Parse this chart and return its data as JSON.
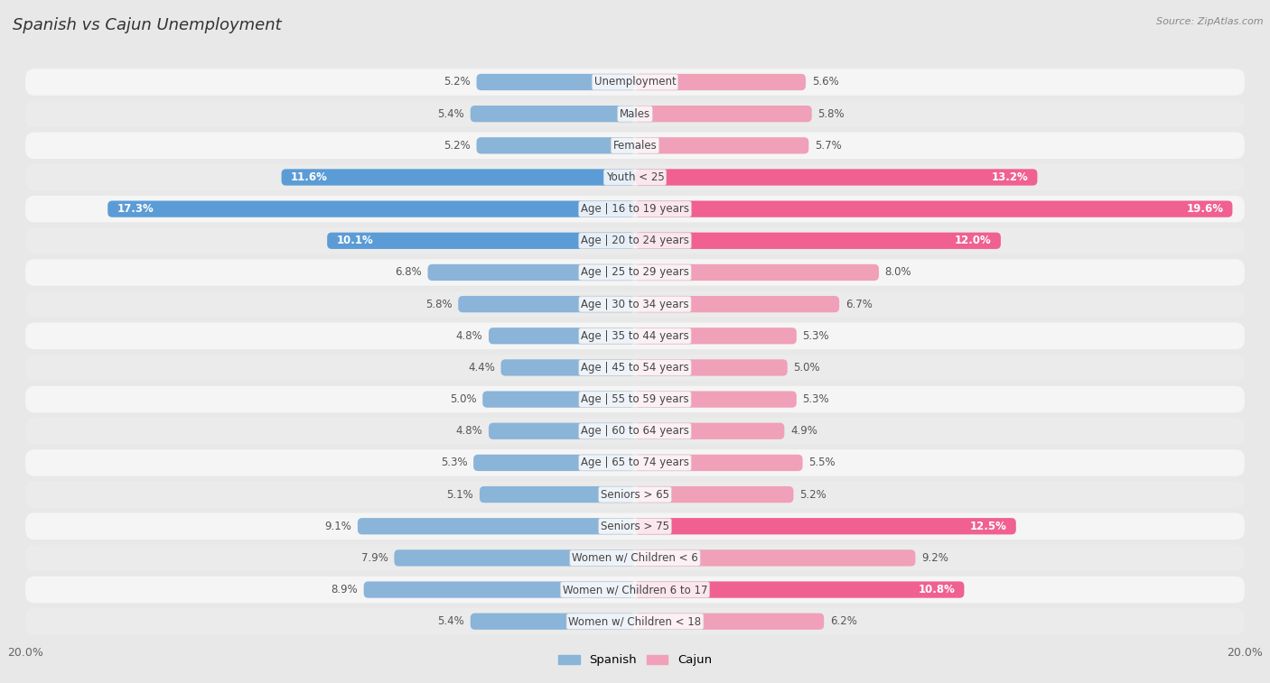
{
  "title": "Spanish vs Cajun Unemployment",
  "source": "Source: ZipAtlas.com",
  "categories": [
    "Unemployment",
    "Males",
    "Females",
    "Youth < 25",
    "Age | 16 to 19 years",
    "Age | 20 to 24 years",
    "Age | 25 to 29 years",
    "Age | 30 to 34 years",
    "Age | 35 to 44 years",
    "Age | 45 to 54 years",
    "Age | 55 to 59 years",
    "Age | 60 to 64 years",
    "Age | 65 to 74 years",
    "Seniors > 65",
    "Seniors > 75",
    "Women w/ Children < 6",
    "Women w/ Children 6 to 17",
    "Women w/ Children < 18"
  ],
  "spanish": [
    5.2,
    5.4,
    5.2,
    11.6,
    17.3,
    10.1,
    6.8,
    5.8,
    4.8,
    4.4,
    5.0,
    4.8,
    5.3,
    5.1,
    9.1,
    7.9,
    8.9,
    5.4
  ],
  "cajun": [
    5.6,
    5.8,
    5.7,
    13.2,
    19.6,
    12.0,
    8.0,
    6.7,
    5.3,
    5.0,
    5.3,
    4.9,
    5.5,
    5.2,
    12.5,
    9.2,
    10.8,
    6.2
  ],
  "spanish_color": "#8ab4d8",
  "cajun_color": "#f0a0b8",
  "spanish_highlight_color": "#5b9cd6",
  "cajun_highlight_color": "#f06090",
  "bg_color": "#e8e8e8",
  "row_bg": "#f5f5f5",
  "row_alt_bg": "#ebebeb",
  "axis_limit": 20.0,
  "bar_height": 0.52,
  "highlight_threshold": 10.0,
  "legend_spanish": "Spanish",
  "legend_cajun": "Cajun",
  "title_fontsize": 13,
  "label_fontsize": 8.5,
  "value_fontsize": 8.5,
  "source_fontsize": 8
}
